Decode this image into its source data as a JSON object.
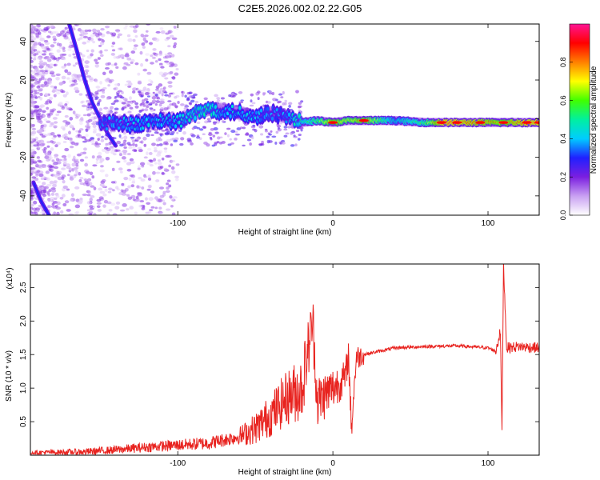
{
  "title": "C2E5.2026.002.02.22.G05",
  "colors": {
    "snr_line": "#e8231f",
    "axis": "#000000"
  },
  "chart_data": [
    {
      "type": "heatmap",
      "xlabel": "Height of straight line (km)",
      "ylabel": "Frequency (Hz)",
      "xlim": [
        -195,
        133
      ],
      "ylim": [
        -50,
        49
      ],
      "xticks": [
        -100,
        0,
        100
      ],
      "yticks": [
        -40,
        -20,
        0,
        20,
        40
      ],
      "grid": false,
      "colorbar": {
        "label": "Normalized spectral amplitude",
        "range": [
          0,
          1
        ],
        "ticks": [
          "0.0",
          "0.2",
          "0.4",
          "0.6",
          "0.8"
        ],
        "colormap": [
          "#ffffff",
          "#c9a0f2",
          "#7b1fe0",
          "#2020ff",
          "#00ccff",
          "#00f0a0",
          "#40ff00",
          "#ffff00",
          "#ff8000",
          "#ff0000",
          "#ff1493"
        ]
      },
      "doppler_track": [
        {
          "x": -170,
          "y": 49
        },
        {
          "x": -165,
          "y": 35
        },
        {
          "x": -160,
          "y": 20
        },
        {
          "x": -155,
          "y": 8
        },
        {
          "x": -150,
          "y": 0
        },
        {
          "x": -145,
          "y": -8
        },
        {
          "x": -140,
          "y": -14
        }
      ],
      "lower_track": [
        {
          "x": -193,
          "y": -33
        },
        {
          "x": -188,
          "y": -43
        },
        {
          "x": -183,
          "y": -50
        }
      ],
      "main_signal": [
        {
          "x": -150,
          "y": -3,
          "a": 0.35
        },
        {
          "x": -140,
          "y": -2,
          "a": 0.35
        },
        {
          "x": -130,
          "y": -3,
          "a": 0.4
        },
        {
          "x": -120,
          "y": -2,
          "a": 0.4
        },
        {
          "x": -110,
          "y": -1,
          "a": 0.4
        },
        {
          "x": -100,
          "y": -2,
          "a": 0.4
        },
        {
          "x": -90,
          "y": 2,
          "a": 0.45
        },
        {
          "x": -80,
          "y": 5,
          "a": 0.45
        },
        {
          "x": -70,
          "y": 4,
          "a": 0.4
        },
        {
          "x": -60,
          "y": 3,
          "a": 0.4
        },
        {
          "x": -50,
          "y": 1,
          "a": 0.4
        },
        {
          "x": -40,
          "y": 3,
          "a": 0.35
        },
        {
          "x": -30,
          "y": 1,
          "a": 0.35
        },
        {
          "x": -20,
          "y": -2,
          "a": 0.5
        },
        {
          "x": -10,
          "y": -1,
          "a": 0.6
        },
        {
          "x": 0,
          "y": -2,
          "a": 0.8
        },
        {
          "x": 10,
          "y": -1,
          "a": 0.7
        },
        {
          "x": 20,
          "y": -1,
          "a": 0.8
        },
        {
          "x": 40,
          "y": -1,
          "a": 0.45
        },
        {
          "x": 60,
          "y": -2,
          "a": 0.6
        },
        {
          "x": 70,
          "y": -2,
          "a": 0.9
        },
        {
          "x": 80,
          "y": -2,
          "a": 0.9
        },
        {
          "x": 95,
          "y": -2,
          "a": 0.85
        },
        {
          "x": 110,
          "y": -2,
          "a": 0.8
        },
        {
          "x": 125,
          "y": -2,
          "a": 0.9
        },
        {
          "x": 133,
          "y": -2,
          "a": 0.9
        }
      ]
    },
    {
      "type": "line",
      "xlabel": "Height of straight line (km)",
      "ylabel": "SNR (10 * v/v)",
      "yscale_label": "(x10⁴)",
      "xlim": [
        -195,
        133
      ],
      "ylim": [
        0,
        2.85
      ],
      "xticks": [
        -100,
        0,
        100
      ],
      "yticks": [
        "0.5",
        "1.0",
        "1.5",
        "2.0",
        "2.5"
      ],
      "grid": false,
      "series": [
        {
          "points": [
            {
              "x": -195,
              "y": 0.04
            },
            {
              "x": -160,
              "y": 0.05
            },
            {
              "x": -140,
              "y": 0.08
            },
            {
              "x": -120,
              "y": 0.12
            },
            {
              "x": -100,
              "y": 0.15
            },
            {
              "x": -80,
              "y": 0.18
            },
            {
              "x": -60,
              "y": 0.28
            },
            {
              "x": -50,
              "y": 0.4
            },
            {
              "x": -40,
              "y": 0.6
            },
            {
              "x": -30,
              "y": 0.85
            },
            {
              "x": -20,
              "y": 1.0
            },
            {
              "x": -13,
              "y": 2.0
            },
            {
              "x": -10,
              "y": 0.8
            },
            {
              "x": 0,
              "y": 1.0
            },
            {
              "x": 8,
              "y": 1.15
            },
            {
              "x": 10,
              "y": 1.5
            },
            {
              "x": 12,
              "y": 0.4
            },
            {
              "x": 15,
              "y": 1.45
            },
            {
              "x": 20,
              "y": 1.5
            },
            {
              "x": 30,
              "y": 1.55
            },
            {
              "x": 40,
              "y": 1.6
            },
            {
              "x": 60,
              "y": 1.62
            },
            {
              "x": 80,
              "y": 1.63
            },
            {
              "x": 100,
              "y": 1.6
            },
            {
              "x": 105,
              "y": 1.55
            },
            {
              "x": 108,
              "y": 1.85
            },
            {
              "x": 109,
              "y": 0.3
            },
            {
              "x": 110,
              "y": 2.85
            },
            {
              "x": 112,
              "y": 1.6
            },
            {
              "x": 120,
              "y": 1.62
            },
            {
              "x": 133,
              "y": 1.6
            }
          ]
        }
      ]
    }
  ]
}
